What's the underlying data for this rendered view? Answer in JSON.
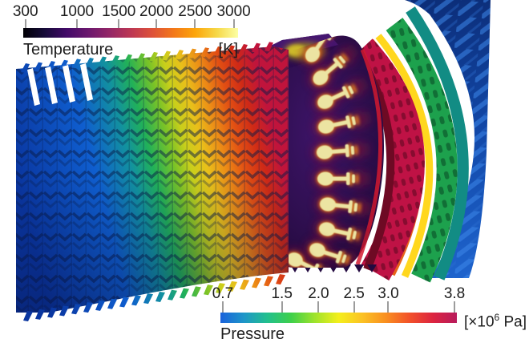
{
  "figure": {
    "subject": "gas-turbine-engine-simulation-render",
    "sections": [
      "fan",
      "compressor",
      "combustor",
      "flame-plumes",
      "turbine"
    ]
  },
  "colorbars": {
    "temperature": {
      "title": "Temperature",
      "unit": "[K]",
      "ticks": [
        "300",
        "1000",
        "1500",
        "2000",
        "2500",
        "3000"
      ],
      "tick_positions_pct": [
        1,
        25,
        44.5,
        62,
        80,
        98
      ],
      "colormap": [
        "#000004",
        "#160b39",
        "#420a68",
        "#6a176e",
        "#932667",
        "#bc3754",
        "#dd513a",
        "#f37819",
        "#fca50a",
        "#f6d746",
        "#fcffa4"
      ]
    },
    "pressure": {
      "title": "Pressure",
      "unit_prefix": "[×10",
      "unit_exponent": "6",
      "unit_suffix": " Pa]",
      "ticks": [
        "0.7",
        "1.5",
        "2.0",
        "2.5",
        "3.0",
        "3.8"
      ],
      "tick_positions_pct": [
        1,
        26,
        41.5,
        56.5,
        71,
        99
      ],
      "colormap": [
        "#1a62dc",
        "#1e96c8",
        "#22c08c",
        "#3fd04a",
        "#9fe32b",
        "#f4ef1c",
        "#fbc224",
        "#f98e20",
        "#f2512a",
        "#dc2440",
        "#b81b5c"
      ]
    }
  },
  "chart_data": [
    {
      "type": "heatmap",
      "role": "colorbar-legend",
      "title": "Temperature",
      "unit": "[K]",
      "ticks": [
        300,
        1000,
        1500,
        2000,
        2500,
        3000
      ],
      "range": [
        300,
        3000
      ],
      "orientation": "horizontal",
      "position": "top-left",
      "colormap": "inferno-like: black → purple → red → orange → pale yellow"
    },
    {
      "type": "heatmap",
      "role": "colorbar-legend",
      "title": "Pressure",
      "unit": "[×10^6 Pa]",
      "ticks": [
        0.7,
        1.5,
        2.0,
        2.5,
        3.0,
        3.8
      ],
      "range": [
        0.7,
        3.8
      ],
      "orientation": "horizontal",
      "position": "bottom-right",
      "colormap": "rainbow: blue → teal → green → yellow → orange → red → crimson"
    }
  ]
}
